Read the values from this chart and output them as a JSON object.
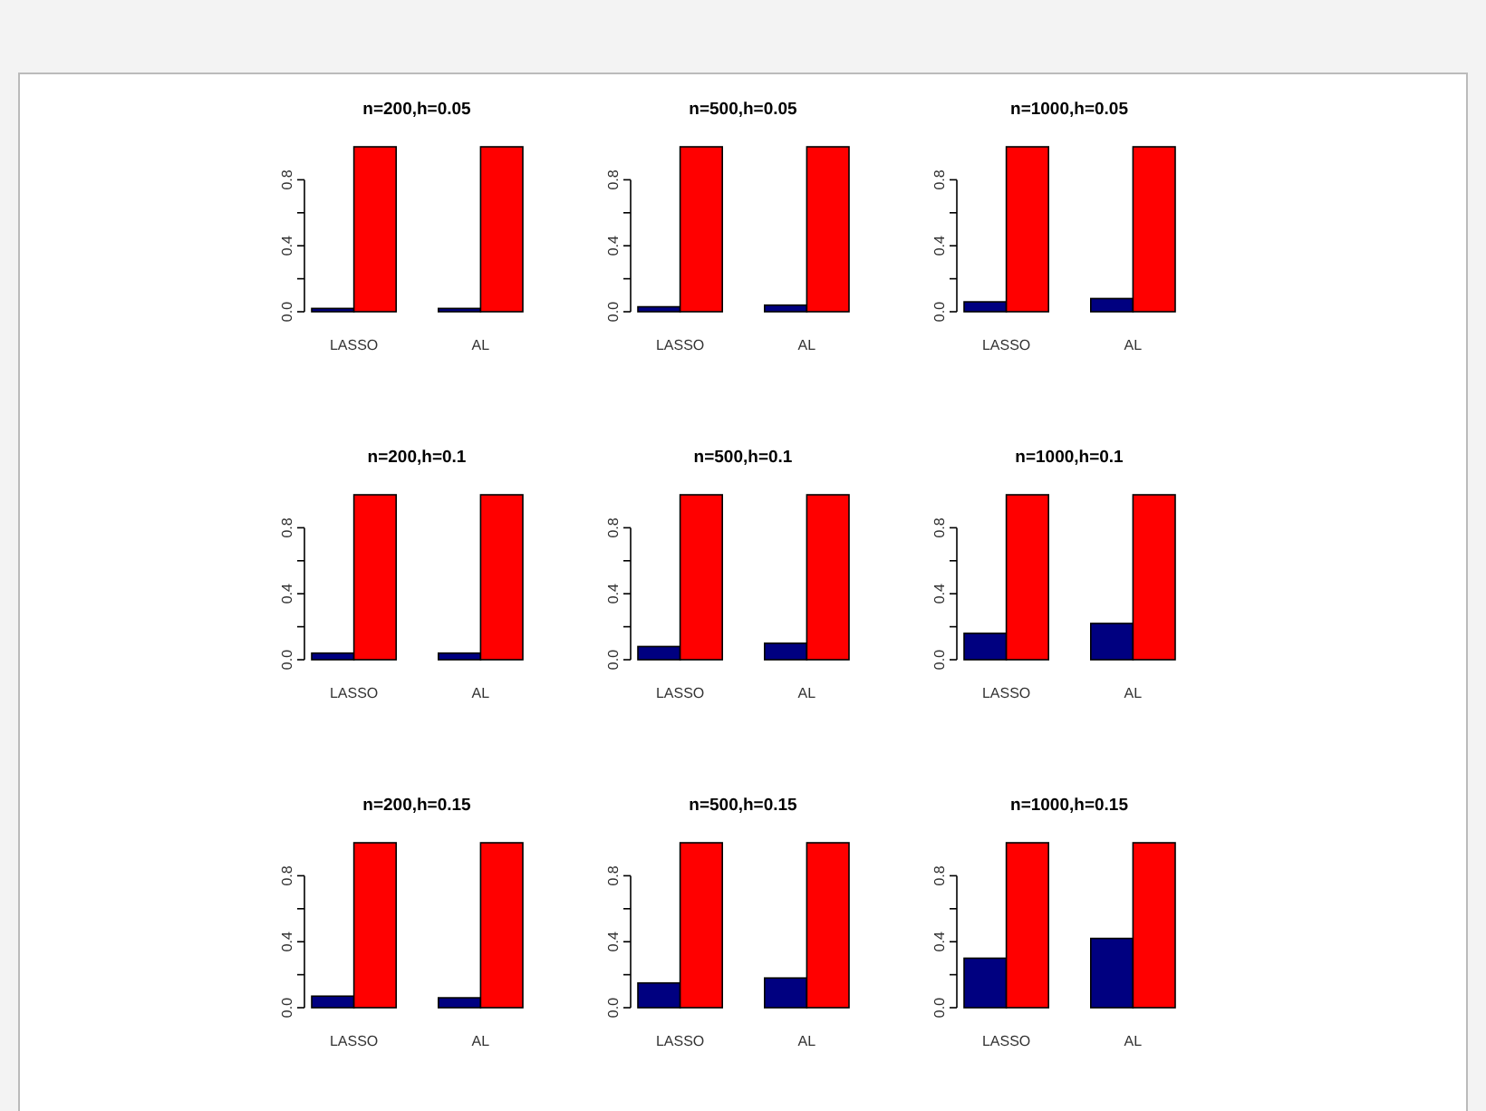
{
  "chart_data": [
    {
      "type": "bar",
      "title": "n=200,h=0.05",
      "categories": [
        "LASSO",
        "AL"
      ],
      "series": [
        {
          "color": "#000080",
          "values": [
            0.02,
            0.02
          ]
        },
        {
          "color": "#ff0000",
          "values": [
            1.0,
            1.0
          ]
        }
      ],
      "ylim": [
        0,
        1.0
      ],
      "yticks": [
        {
          "value": 0,
          "label": "0.0"
        },
        {
          "value": 0.2,
          "label": null
        },
        {
          "value": 0.4,
          "label": "0.4"
        },
        {
          "value": 0.6,
          "label": null
        },
        {
          "value": 0.8,
          "label": "0.8"
        }
      ],
      "grid": false
    },
    {
      "type": "bar",
      "title": "n=500,h=0.05",
      "categories": [
        "LASSO",
        "AL"
      ],
      "series": [
        {
          "color": "#000080",
          "values": [
            0.03,
            0.04
          ]
        },
        {
          "color": "#ff0000",
          "values": [
            1.0,
            1.0
          ]
        }
      ],
      "ylim": [
        0,
        1.0
      ],
      "yticks": [
        {
          "value": 0,
          "label": "0.0"
        },
        {
          "value": 0.2,
          "label": null
        },
        {
          "value": 0.4,
          "label": "0.4"
        },
        {
          "value": 0.6,
          "label": null
        },
        {
          "value": 0.8,
          "label": "0.8"
        }
      ],
      "grid": false
    },
    {
      "type": "bar",
      "title": "n=1000,h=0.05",
      "categories": [
        "LASSO",
        "AL"
      ],
      "series": [
        {
          "color": "#000080",
          "values": [
            0.06,
            0.08
          ]
        },
        {
          "color": "#ff0000",
          "values": [
            1.0,
            1.0
          ]
        }
      ],
      "ylim": [
        0,
        1.0
      ],
      "yticks": [
        {
          "value": 0,
          "label": "0.0"
        },
        {
          "value": 0.2,
          "label": null
        },
        {
          "value": 0.4,
          "label": "0.4"
        },
        {
          "value": 0.6,
          "label": null
        },
        {
          "value": 0.8,
          "label": "0.8"
        }
      ],
      "grid": false
    },
    {
      "type": "bar",
      "title": "n=200,h=0.1",
      "categories": [
        "LASSO",
        "AL"
      ],
      "series": [
        {
          "color": "#000080",
          "values": [
            0.04,
            0.04
          ]
        },
        {
          "color": "#ff0000",
          "values": [
            1.0,
            1.0
          ]
        }
      ],
      "ylim": [
        0,
        1.0
      ],
      "yticks": [
        {
          "value": 0,
          "label": "0.0"
        },
        {
          "value": 0.2,
          "label": null
        },
        {
          "value": 0.4,
          "label": "0.4"
        },
        {
          "value": 0.6,
          "label": null
        },
        {
          "value": 0.8,
          "label": "0.8"
        }
      ],
      "grid": false
    },
    {
      "type": "bar",
      "title": "n=500,h=0.1",
      "categories": [
        "LASSO",
        "AL"
      ],
      "series": [
        {
          "color": "#000080",
          "values": [
            0.08,
            0.1
          ]
        },
        {
          "color": "#ff0000",
          "values": [
            1.0,
            1.0
          ]
        }
      ],
      "ylim": [
        0,
        1.0
      ],
      "yticks": [
        {
          "value": 0,
          "label": "0.0"
        },
        {
          "value": 0.2,
          "label": null
        },
        {
          "value": 0.4,
          "label": "0.4"
        },
        {
          "value": 0.6,
          "label": null
        },
        {
          "value": 0.8,
          "label": "0.8"
        }
      ],
      "grid": false
    },
    {
      "type": "bar",
      "title": "n=1000,h=0.1",
      "categories": [
        "LASSO",
        "AL"
      ],
      "series": [
        {
          "color": "#000080",
          "values": [
            0.16,
            0.22
          ]
        },
        {
          "color": "#ff0000",
          "values": [
            1.0,
            1.0
          ]
        }
      ],
      "ylim": [
        0,
        1.0
      ],
      "yticks": [
        {
          "value": 0,
          "label": "0.0"
        },
        {
          "value": 0.2,
          "label": null
        },
        {
          "value": 0.4,
          "label": "0.4"
        },
        {
          "value": 0.6,
          "label": null
        },
        {
          "value": 0.8,
          "label": "0.8"
        }
      ],
      "grid": false
    },
    {
      "type": "bar",
      "title": "n=200,h=0.15",
      "categories": [
        "LASSO",
        "AL"
      ],
      "series": [
        {
          "color": "#000080",
          "values": [
            0.07,
            0.06
          ]
        },
        {
          "color": "#ff0000",
          "values": [
            1.0,
            1.0
          ]
        }
      ],
      "ylim": [
        0,
        1.0
      ],
      "yticks": [
        {
          "value": 0,
          "label": "0.0"
        },
        {
          "value": 0.2,
          "label": null
        },
        {
          "value": 0.4,
          "label": "0.4"
        },
        {
          "value": 0.6,
          "label": null
        },
        {
          "value": 0.8,
          "label": "0.8"
        }
      ],
      "grid": false
    },
    {
      "type": "bar",
      "title": "n=500,h=0.15",
      "categories": [
        "LASSO",
        "AL"
      ],
      "series": [
        {
          "color": "#000080",
          "values": [
            0.15,
            0.18
          ]
        },
        {
          "color": "#ff0000",
          "values": [
            1.0,
            1.0
          ]
        }
      ],
      "ylim": [
        0,
        1.0
      ],
      "yticks": [
        {
          "value": 0,
          "label": "0.0"
        },
        {
          "value": 0.2,
          "label": null
        },
        {
          "value": 0.4,
          "label": "0.4"
        },
        {
          "value": 0.6,
          "label": null
        },
        {
          "value": 0.8,
          "label": "0.8"
        }
      ],
      "grid": false
    },
    {
      "type": "bar",
      "title": "n=1000,h=0.15",
      "categories": [
        "LASSO",
        "AL"
      ],
      "series": [
        {
          "color": "#000080",
          "values": [
            0.3,
            0.42
          ]
        },
        {
          "color": "#ff0000",
          "values": [
            1.0,
            1.0
          ]
        }
      ],
      "ylim": [
        0,
        1.0
      ],
      "yticks": [
        {
          "value": 0,
          "label": "0.0"
        },
        {
          "value": 0.2,
          "label": null
        },
        {
          "value": 0.4,
          "label": "0.4"
        },
        {
          "value": 0.6,
          "label": null
        },
        {
          "value": 0.8,
          "label": "0.8"
        }
      ],
      "grid": false
    }
  ]
}
